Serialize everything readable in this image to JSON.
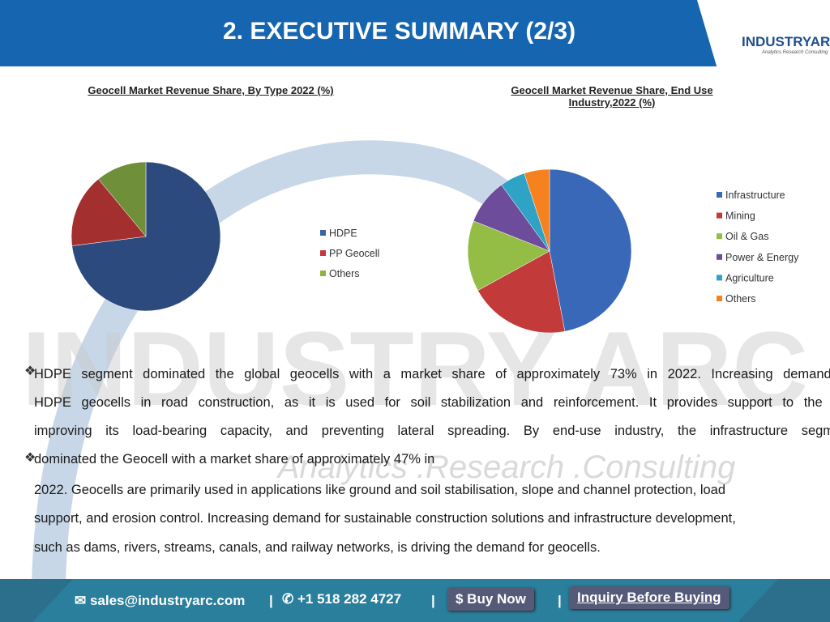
{
  "header": {
    "title": "2. EXECUTIVE SUMMARY (2/3)",
    "logo": "INDUSTRYARC",
    "logo_tagline": "Analytics Research Consulting"
  },
  "chart_data": [
    {
      "type": "pie",
      "title": "Geocell Market Revenue Share, By Type 2022 (%)",
      "categories": [
        "HDPE",
        "PP Geocell",
        "Others"
      ],
      "values": [
        73,
        16,
        11
      ],
      "colors": [
        "#2c4a7e",
        "#a3302f",
        "#6f8f3a"
      ],
      "legend_colors": [
        "#3b63a8",
        "#c0393b",
        "#8db43e"
      ]
    },
    {
      "type": "pie",
      "title": "Geocell Market Revenue Share, End Use Industry,2022 (%)",
      "categories": [
        "Infrastructure",
        "Mining",
        "Oil & Gas",
        "Power & Energy",
        "Agriculture",
        "Others"
      ],
      "values": [
        47,
        20,
        14,
        9,
        5,
        5
      ],
      "colors": [
        "#3a68b8",
        "#c33a3a",
        "#93bd44",
        "#6d4c9c",
        "#2ea3c6",
        "#f5821f"
      ],
      "legend_colors": [
        "#3a68b8",
        "#c33a3a",
        "#93bd44",
        "#6d4c9c",
        "#2ea3c6",
        "#f5821f"
      ]
    }
  ],
  "watermark": {
    "brand": "INDUSTRY ARC",
    "tagline": "Analytics .Research .Consulting"
  },
  "body": {
    "lines": [
      "HDPE segment dominated the global geocells with a market share of approximately 73% in 2022. Increasing demand of",
      "HDPE geocells in road construction, as it is used for soil stabilization and reinforcement. It provides support to the soil",
      "improving its load-bearing capacity, and preventing lateral spreading. By end-use industry, the infrastructure segment",
      "dominated the Geocell with a market share of approximately 47% in",
      "2022. Geocells are primarily used in applications like ground and soil stabilisation, slope and channel protection, load",
      "support, and erosion control. Increasing demand for sustainable construction solutions and infrastructure development,",
      "such as dams, rivers, streams, canals, and railway networks, is driving the demand for geocells."
    ]
  },
  "footer": {
    "email": "sales@industryarc.com",
    "separator": "|",
    "phone": "+1 518 282 4727",
    "buy": "$ Buy Now",
    "inquiry": "Inquiry Before Buying"
  }
}
